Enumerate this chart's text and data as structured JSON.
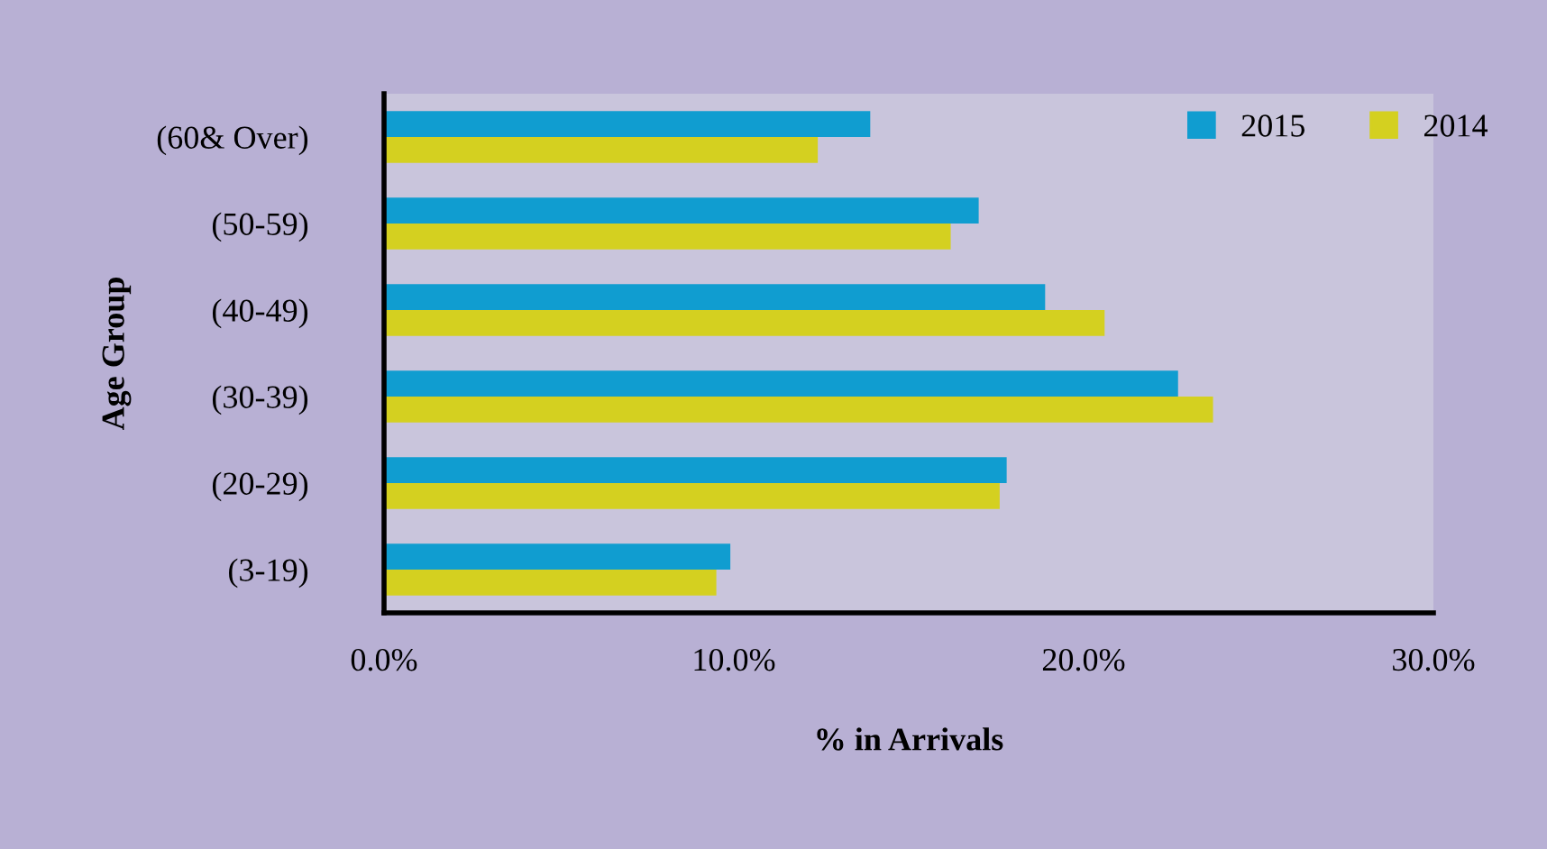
{
  "chart_data": {
    "type": "bar",
    "orientation": "horizontal",
    "xlabel": "% in Arrivals",
    "ylabel": "Age Group",
    "categories": [
      "(60& Over)",
      "(50-59)",
      "(40-49)",
      "(30-39)",
      "(20-29)",
      "(3-19)"
    ],
    "series": [
      {
        "name": "2015",
        "color": "#109dd0",
        "values": [
          13.9,
          17.0,
          18.9,
          22.7,
          17.8,
          9.9
        ]
      },
      {
        "name": "2014",
        "color": "#d4d020",
        "values": [
          12.4,
          16.2,
          20.6,
          23.7,
          17.6,
          9.5
        ]
      }
    ],
    "xlim": [
      0,
      30
    ],
    "xticks": [
      {
        "value": 0,
        "label": "0.0%"
      },
      {
        "value": 10,
        "label": "10.0%"
      },
      {
        "value": 20,
        "label": "20.0%"
      },
      {
        "value": 30,
        "label": "30.0%"
      }
    ],
    "grid": false,
    "legend": "top right"
  }
}
